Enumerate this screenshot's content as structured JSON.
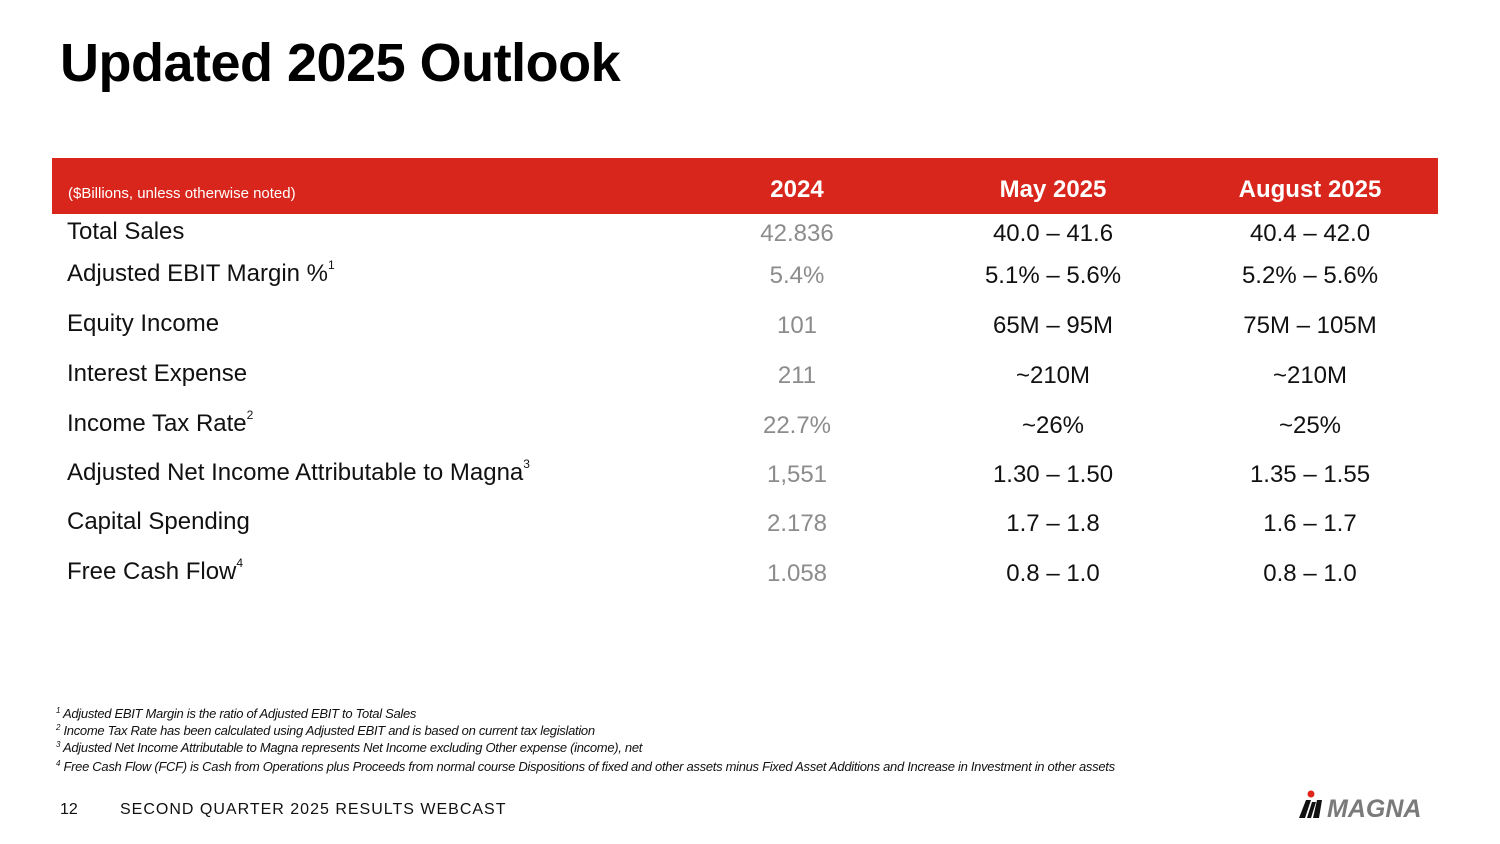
{
  "title": "Updated 2025 Outlook",
  "table": {
    "note": "($Billions, unless otherwise noted)",
    "columns": [
      "2024",
      "May 2025",
      "August 2025"
    ],
    "rows": [
      {
        "label": "Total Sales",
        "sup": "",
        "values": [
          "42.836",
          "40.0 – 41.6",
          "40.4 – 42.0"
        ]
      },
      {
        "label": "Adjusted EBIT Margin %",
        "sup": "1",
        "values": [
          "5.4%",
          "5.1% – 5.6%",
          "5.2% – 5.6%"
        ]
      },
      {
        "label": "Equity Income",
        "sup": "",
        "values": [
          "101",
          "65M – 95M",
          "75M – 105M"
        ]
      },
      {
        "label": "Interest Expense",
        "sup": "",
        "values": [
          "211",
          "~210M",
          "~210M"
        ]
      },
      {
        "label": "Income Tax Rate",
        "sup": "2",
        "values": [
          "22.7%",
          "~26%",
          "~25%"
        ]
      },
      {
        "label": "Adjusted Net Income Attributable to Magna",
        "sup": "3",
        "values": [
          "1,551",
          "1.30 – 1.50",
          "1.35 – 1.55"
        ]
      },
      {
        "label": "Capital Spending",
        "sup": "",
        "values": [
          "2.178",
          "1.7 – 1.8",
          "1.6 – 1.7"
        ]
      },
      {
        "label": "Free Cash Flow",
        "sup": "4",
        "values": [
          "1.058",
          "0.8 – 1.0",
          "0.8 – 1.0"
        ]
      }
    ]
  },
  "footnotes": [
    {
      "sup": "1",
      "text": "Adjusted EBIT Margin is the ratio of Adjusted EBIT to Total Sales"
    },
    {
      "sup": "2",
      "text": "Income Tax Rate has been calculated using Adjusted EBIT and is based on current tax legislation"
    },
    {
      "sup": "3",
      "text": "Adjusted Net Income Attributable to Magna represents Net Income excluding Other expense (income), net"
    },
    {
      "sup": "4",
      "text": "Free Cash Flow (FCF) is Cash from Operations plus Proceeds from normal course Dispositions of fixed and other assets minus Fixed Asset Additions and Increase in Investment in other assets"
    }
  ],
  "footer": {
    "page": "12",
    "text": "SECOND QUARTER 2025 RESULTS WEBCAST",
    "logo": "MAGNA"
  },
  "colors": {
    "header": "#d9261c",
    "historic": "#8c8c8c"
  }
}
